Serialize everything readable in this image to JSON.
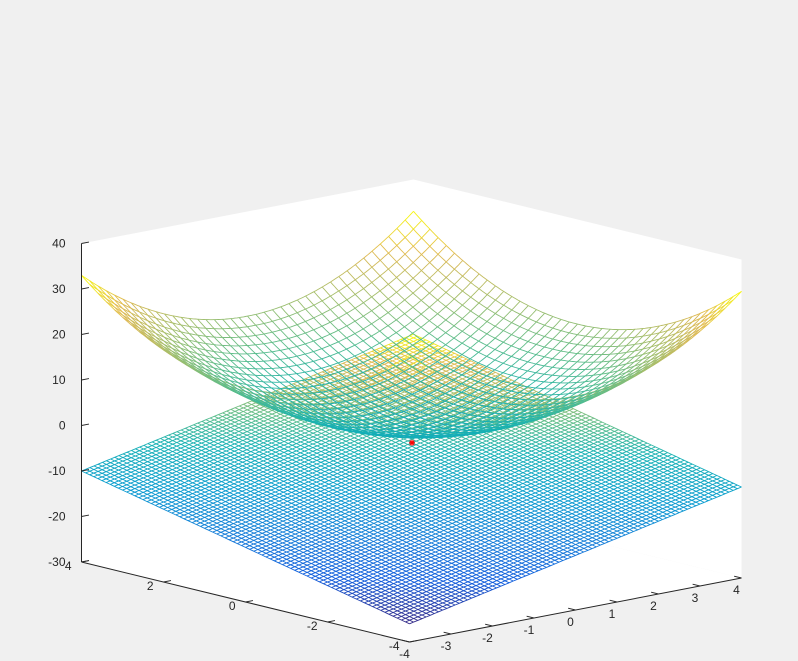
{
  "figure": {
    "background": "#f0f0f0",
    "axes_color": "#262626"
  },
  "chart_data": {
    "type": "surface",
    "view": "3d",
    "grid": false,
    "xlim": [
      -4,
      4
    ],
    "ylim": [
      -4,
      4
    ],
    "zlim": [
      -30,
      40
    ],
    "x_ticks": [
      -4,
      -3,
      -2,
      -1,
      0,
      1,
      2,
      3,
      4
    ],
    "x_tick_labels": [
      "-4",
      "-3",
      "-2",
      "-1",
      "0",
      "1",
      "2",
      "3",
      "4"
    ],
    "y_ticks": [
      -4,
      -2,
      0,
      2,
      4
    ],
    "y_tick_labels": [
      "-4",
      "-2",
      "0",
      "2",
      "4"
    ],
    "z_ticks": [
      -30,
      -20,
      -10,
      0,
      10,
      20,
      30,
      40
    ],
    "z_tick_labels": [
      "-30",
      "-20",
      "-10",
      "0",
      "10",
      "20",
      "30",
      "40"
    ],
    "surfaces": [
      {
        "kind": "mesh",
        "function": "z = 1 + x^2 + y^2",
        "x_range": [
          -4,
          4
        ],
        "y_range": [
          -4,
          4
        ],
        "grid_step": 0.2,
        "colormap": "parula",
        "z_extent": [
          1,
          33
        ]
      },
      {
        "kind": "mesh",
        "function": "plane z = 2x + 2y - 10 (tangent plane)",
        "coef": {
          "a": 2,
          "b": 2,
          "c": -10
        },
        "x_range": [
          -4,
          4
        ],
        "y_range": [
          -4,
          4
        ],
        "grid_step": 0.1,
        "colormap": "parula",
        "z_extent": [
          -26,
          6
        ]
      }
    ],
    "marker": {
      "x": 1,
      "y": 1,
      "z": -6,
      "symbol": "*",
      "color": "#ff0000"
    }
  }
}
